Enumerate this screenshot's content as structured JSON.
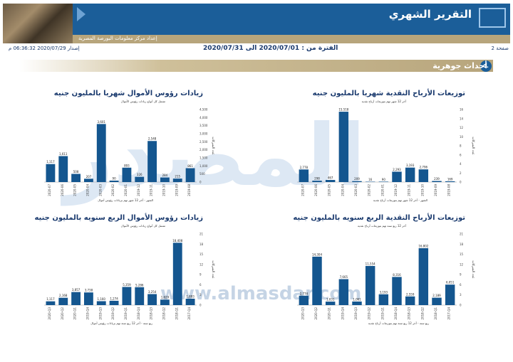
{
  "header": {
    "title": "التقرير الشهري",
    "subbar": "إعداد مركز معلومات البورصة المصرية",
    "page_label": "صفحة 2",
    "period": "الفترة من : 2020/07/01 الى 2020/07/31",
    "issued": "إصدار 2020/07/29 06:36:32 م",
    "colors": {
      "brand": "#1b5e99",
      "gold": "#b7a57c",
      "bar": "#14568f"
    }
  },
  "section": {
    "number": "٥.",
    "title": "أحداث جوهرية"
  },
  "watermark": {
    "text": "المصدر",
    "url": "www.almasdar.com"
  },
  "chart_data": [
    {
      "id": "dividends-monthly",
      "type": "bar",
      "title": "توزيعات الأرباح النقدية شهريا بالمليون جنيه",
      "subtitle": "آخر 12 شهر تهم بتوزيعات أرباح نقدية",
      "footnote": "الشهر - آخر 12 شهر تهم بتوزيعات أرباح نقدية",
      "ylabel": "عدد الشركات",
      "categories": [
        "2020-07",
        "2020-06",
        "2020-05",
        "2020-04",
        "2020-03",
        "2020-02",
        "2020-01",
        "2019-12",
        "2019-11",
        "2019-10",
        "2019-09",
        "2019-08"
      ],
      "values": [
        2778,
        298,
        467,
        15518,
        209,
        16,
        90,
        2293,
        3193,
        2796,
        239,
        169
      ],
      "value_labels": [
        "2,778",
        "298",
        "467",
        "15,518",
        "209",
        "16",
        "90",
        "2,293",
        "3,193",
        "2,796",
        "239",
        "169"
      ],
      "ylim": [
        0,
        16000
      ],
      "right_ticks": [
        "0",
        "2",
        "4",
        "6",
        "8",
        "10",
        "12",
        "14",
        "16"
      ]
    },
    {
      "id": "capital-increase-monthly",
      "type": "bar",
      "title": "زيادات رؤوس الأموال شهريا بالمليون جنيه",
      "subtitle": "تشمل كل أنواع زيادات رؤوس الأموال",
      "footnote": "الشهر - آخر 12 شهر تهم بزيادات رؤوس أموال",
      "ylabel": "عدد الشركات",
      "categories": [
        "2020-07",
        "2020-06",
        "2020-05",
        "2020-04",
        "2020-03",
        "2020-02",
        "2020-01",
        "2019-12",
        "2019-11",
        "2019-10",
        "2019-09",
        "2019-08"
      ],
      "values": [
        1117,
        1611,
        508,
        207,
        3601,
        90,
        893,
        326,
        2548,
        284,
        215,
        861
      ],
      "value_labels": [
        "1,117",
        "1,611",
        "508",
        "207",
        "3,601",
        "90",
        "893",
        "326",
        "2,548",
        "284",
        "215",
        "861"
      ],
      "ylim": [
        0,
        4500
      ],
      "right_ticks": [
        "0",
        "500",
        "1,000",
        "1,500",
        "2,000",
        "2,500",
        "3,000",
        "3,500",
        "4,000",
        "4,500"
      ]
    },
    {
      "id": "dividends-quarterly",
      "type": "bar",
      "title": "توزيعات الأرباح النقدية الربع سنويه بالمليون جنيه",
      "subtitle": "آخر 12 ربع سنة تهم بتوزيعات أرباح نقدية",
      "footnote": "ربع سنة - آخر 12 ربع سنة تهم بتوزيعات أرباح نقدية",
      "ylabel": "عدد الشركات",
      "categories": [
        "2020-Q3",
        "2020-Q2",
        "2020-Q1",
        "2019-Q4",
        "2019-Q3",
        "2019-Q2",
        "2019-Q1",
        "2018-Q4",
        "2018-Q3",
        "2018-Q2",
        "2018-Q1",
        "2017-Q4"
      ],
      "values": [
        2774,
        14304,
        1031,
        7665,
        1061,
        11554,
        3193,
        8316,
        2559,
        16802,
        2189,
        6051
      ],
      "value_labels": [
        "2,774",
        "14,304",
        "1,031",
        "7,665",
        "1,061",
        "11,554",
        "3,193",
        "8,316",
        "2,559",
        "16,802",
        "2,189",
        "6,051"
      ],
      "ylim": [
        0,
        21000
      ],
      "right_ticks": [
        "0",
        "3",
        "6",
        "9",
        "12",
        "15",
        "18",
        "21"
      ]
    },
    {
      "id": "capital-increase-quarterly",
      "type": "bar",
      "title": "زيادات رؤوس الأموال الربع سنويه بالمليون جنيه",
      "subtitle": "تشمل كل أنواع زيادات رؤوس الأموال",
      "footnote": "ربع سنة - آخر 12 ربع سنة تهم بزيادات رؤوس أموال",
      "ylabel": "عدد الشركات",
      "categories": [
        "2020-Q3",
        "2020-Q2",
        "2020-Q1",
        "2019-Q4",
        "2019-Q3",
        "2019-Q2",
        "2019-Q1",
        "2018-Q4",
        "2018-Q3",
        "2018-Q2",
        "2018-Q1",
        "2017-Q4"
      ],
      "values": [
        1117,
        2168,
        3857,
        3738,
        1160,
        1274,
        5359,
        5286,
        3254,
        1629,
        18408,
        1893
      ],
      "value_labels": [
        "1,117",
        "2,168",
        "3,857",
        "3,738",
        "1,160",
        "1,274",
        "5,359",
        "5,286",
        "3,254",
        "1,629",
        "18,408",
        "1,893"
      ],
      "ylim": [
        0,
        21000
      ],
      "right_ticks": [
        "0",
        "3",
        "6",
        "9",
        "12",
        "15",
        "18",
        "21"
      ]
    }
  ]
}
